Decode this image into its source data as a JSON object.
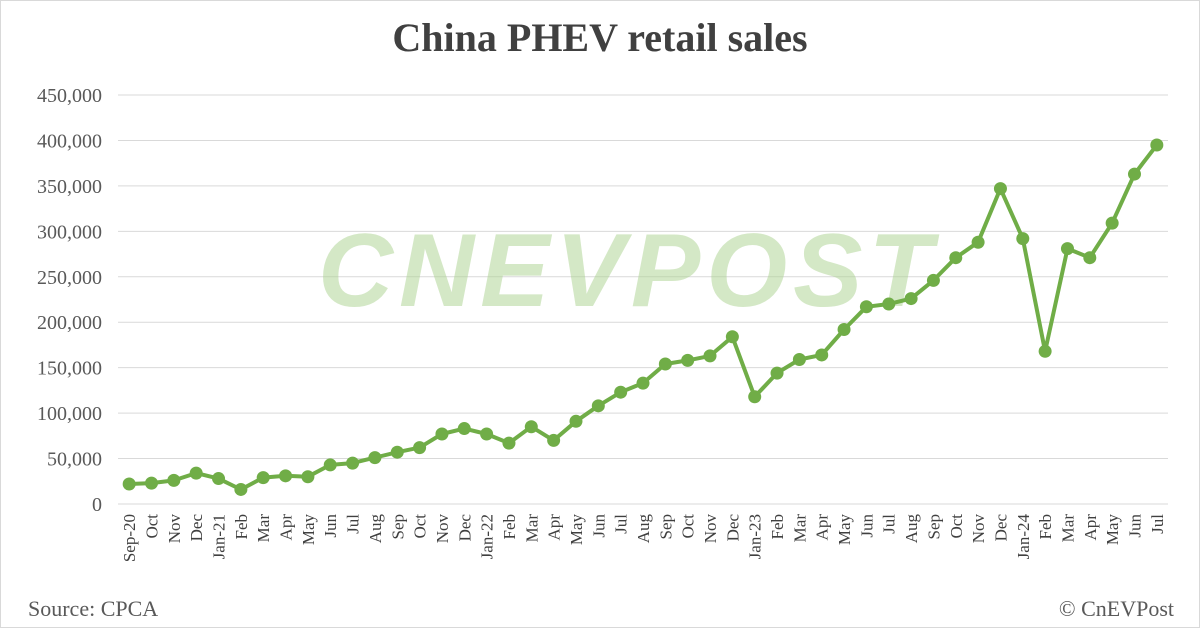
{
  "chart_data": {
    "type": "line",
    "title": "China PHEV retail sales",
    "x": [
      "Sep-20",
      "Oct",
      "Nov",
      "Dec",
      "Jan-21",
      "Feb",
      "Mar",
      "Apr",
      "May",
      "Jun",
      "Jul",
      "Aug",
      "Sep",
      "Oct",
      "Nov",
      "Dec",
      "Jan-22",
      "Feb",
      "Mar",
      "Apr",
      "May",
      "Jun",
      "Jul",
      "Aug",
      "Sep",
      "Oct",
      "Nov",
      "Dec",
      "Jan-23",
      "Feb",
      "Mar",
      "Apr",
      "May",
      "Jun",
      "Jul",
      "Aug",
      "Sep",
      "Oct",
      "Nov",
      "Dec",
      "Jan-24",
      "Feb",
      "Mar",
      "Apr",
      "May",
      "Jun",
      "Jul"
    ],
    "series": [
      {
        "values": [
          22000,
          23000,
          26000,
          34000,
          28000,
          16000,
          29000,
          31000,
          30000,
          43000,
          45000,
          51000,
          57000,
          62000,
          77000,
          83000,
          77000,
          67000,
          85000,
          70000,
          91000,
          108000,
          123000,
          133000,
          154000,
          158000,
          163000,
          184000,
          118000,
          144000,
          159000,
          164000,
          192000,
          217000,
          220000,
          226000,
          246000,
          271000,
          288000,
          347000,
          292000,
          168000,
          281000,
          271000,
          309000,
          363000,
          395000
        ]
      }
    ],
    "ylim": [
      0,
      450000
    ],
    "yticks": [
      "0",
      "50,000",
      "100,000",
      "150,000",
      "200,000",
      "250,000",
      "300,000",
      "350,000",
      "400,000",
      "450,000"
    ],
    "grid": true,
    "line_color": "#70ad47",
    "grid_color": "#d9d9d9"
  },
  "watermark_text": "CNEVPOST",
  "footer": {
    "source": "Source: CPCA",
    "copyright": "© CnEVPost"
  }
}
